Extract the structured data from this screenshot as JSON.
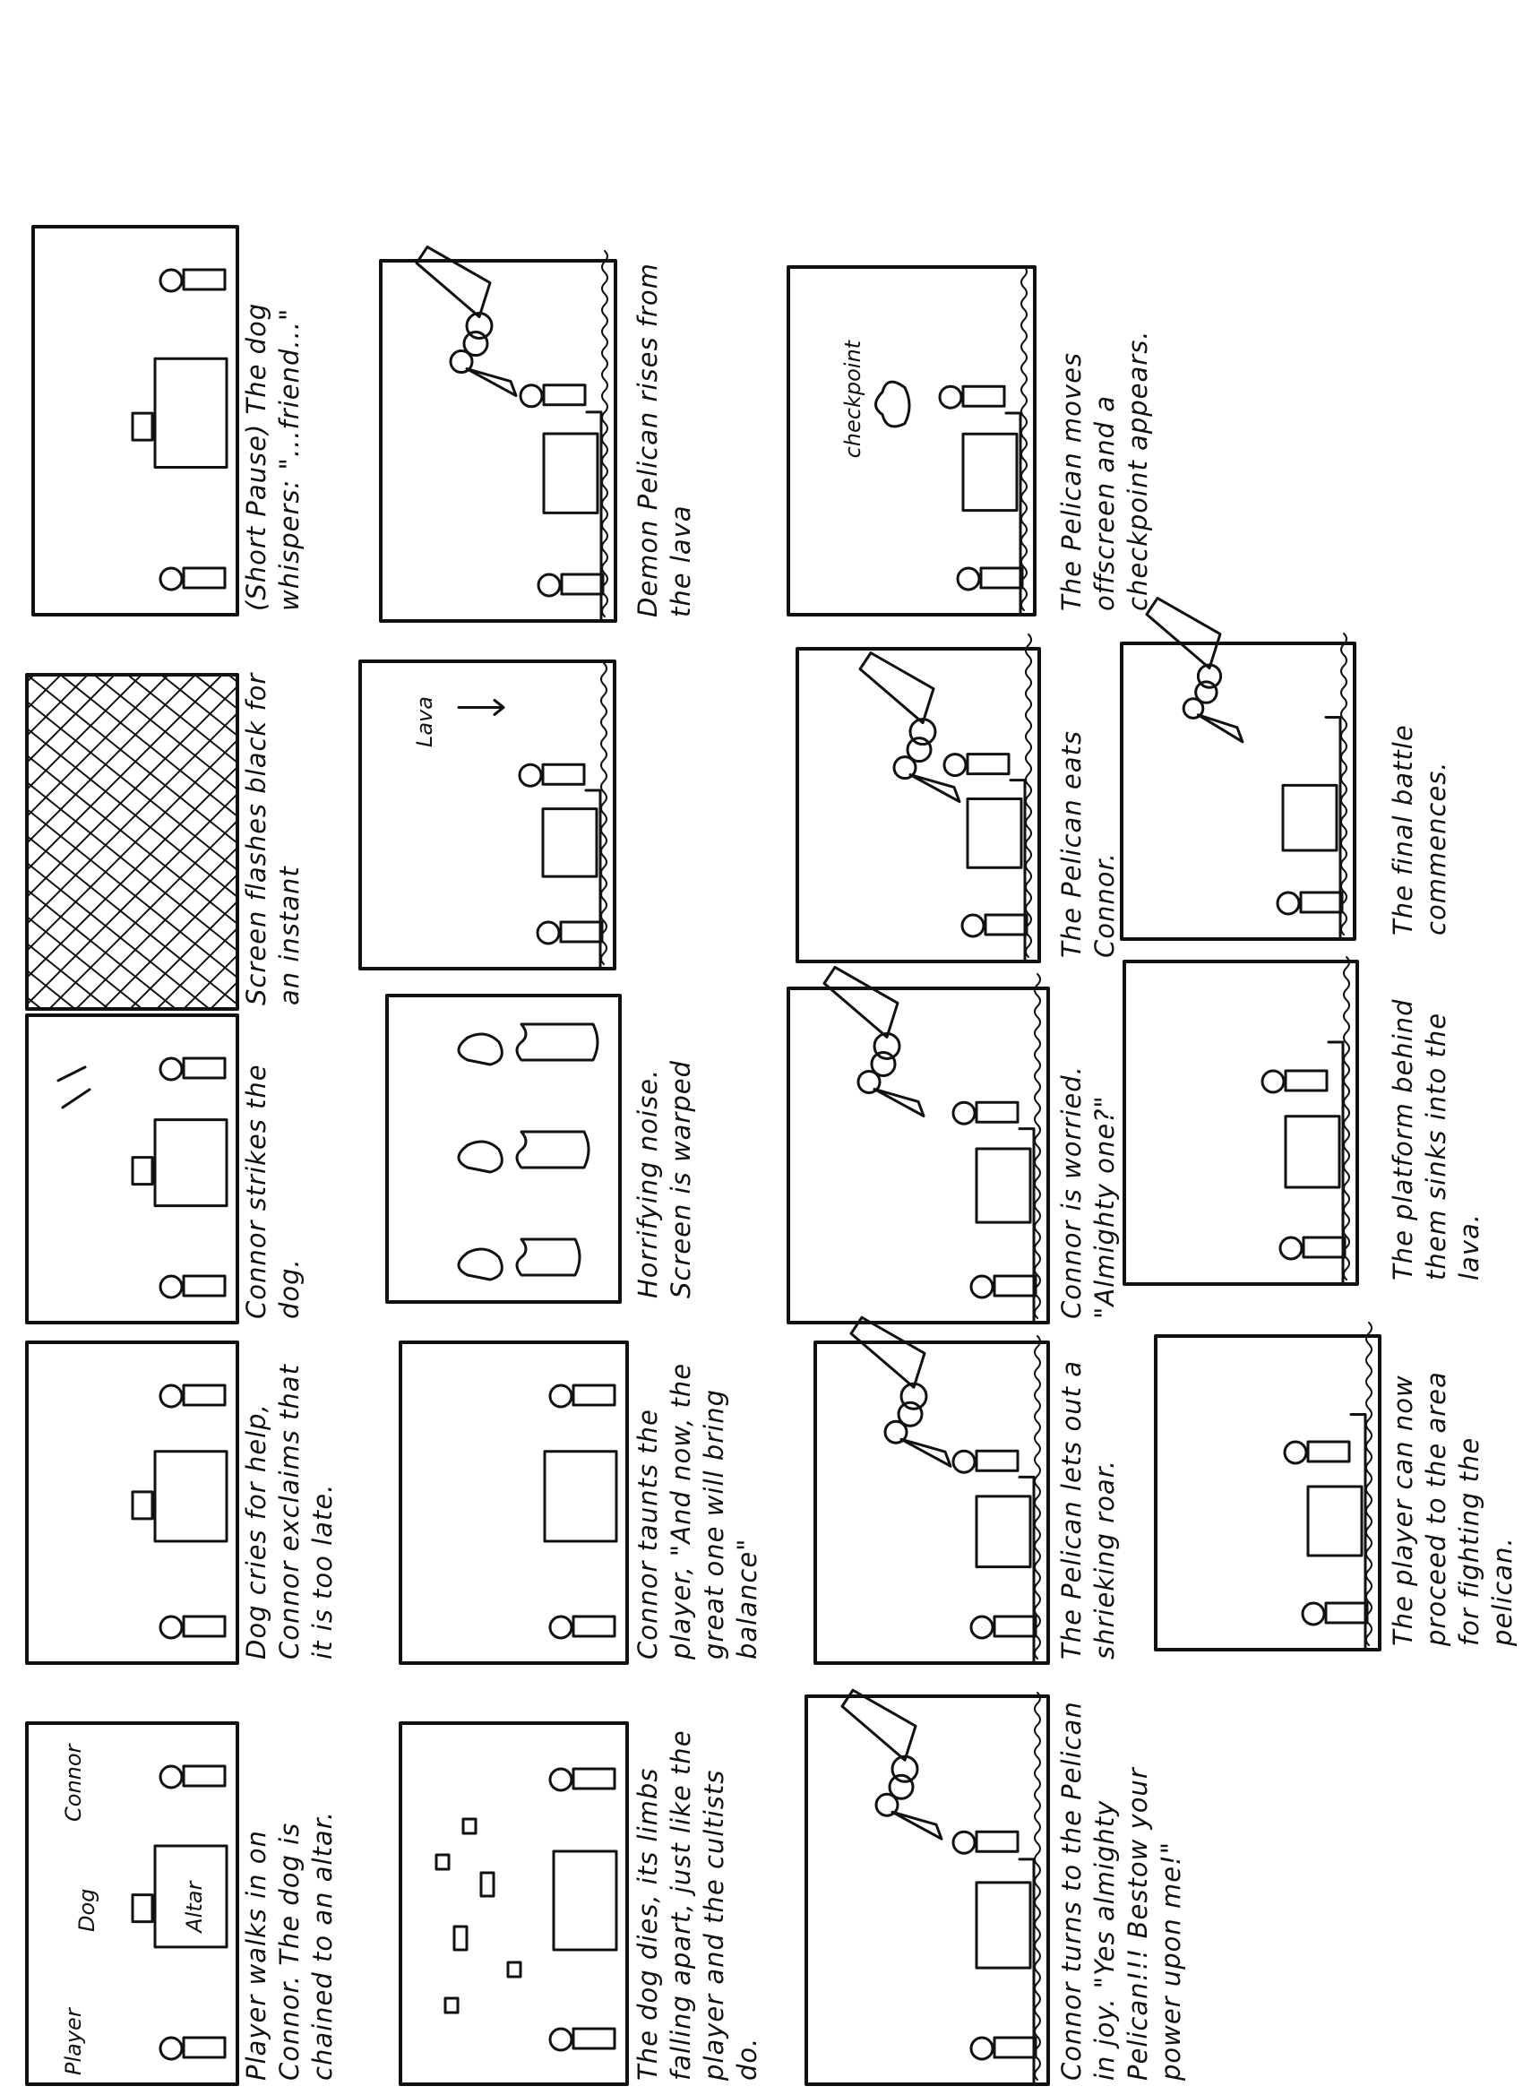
{
  "panels": [
    {
      "caption": "Player walks in on Connor. The dog is chained to an altar.",
      "labels": [
        "Player",
        "Dog",
        "Altar",
        "Connor"
      ]
    },
    {
      "caption": "Dog cries for help, Connor exclaims that it is too late."
    },
    {
      "caption": "Connor strikes the dog."
    },
    {
      "caption": "Screen flashes black for an instant"
    },
    {
      "caption": "(Short Pause) The dog whispers: \"...friend...\""
    },
    {
      "caption": "The dog dies, its limbs falling apart, just like the player and the cultists do."
    },
    {
      "caption": "Connor taunts the player, \"And now, the great one will bring balance\""
    },
    {
      "caption": "Horrifying noise. Screen is warped"
    },
    {
      "labels": [
        "Lava"
      ]
    },
    {
      "caption": "Demon Pelican rises from the lava"
    },
    {
      "caption": "Connor turns to the Pelican in joy. \"Yes almighty Pelican!!! Bestow your power upon me!\""
    },
    {
      "caption": "The Pelican lets out a shrieking roar."
    },
    {
      "caption": "Connor is worried. \"Almighty one?\""
    },
    {
      "caption": "The Pelican eats Connor."
    },
    {
      "caption": "The Pelican moves offscreen and a checkpoint appears.",
      "labels": [
        "checkpoint"
      ]
    },
    {
      "caption": "The player can now proceed to the area for fighting the pelican."
    },
    {
      "caption": "The platform behind them sinks into the lava."
    },
    {
      "caption": "The final battle commences."
    }
  ]
}
